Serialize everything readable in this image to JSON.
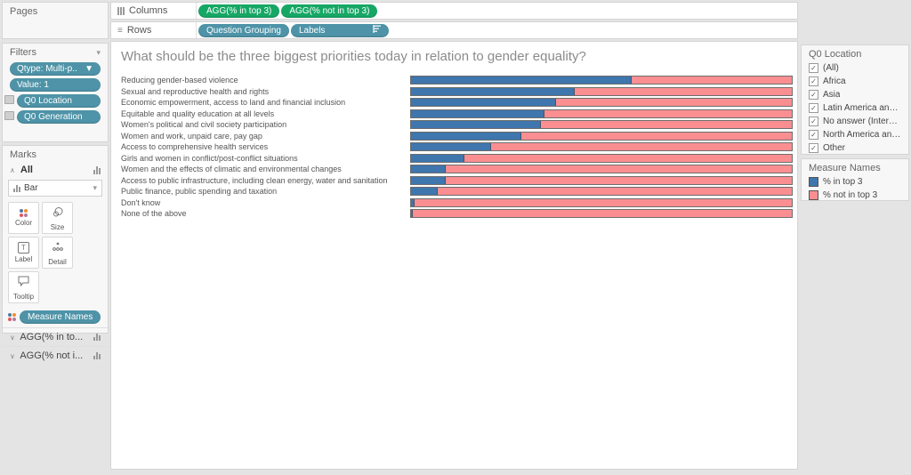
{
  "colors": {
    "measure_pill_green": "#16a765",
    "dimension_pill_blue": "#4e93a7",
    "bar_blue": "#3e76ad",
    "bar_pink": "#fa8e91",
    "color_icon_dots": [
      "#4e79a7",
      "#f28e2b",
      "#e15759",
      "#b07aa1"
    ]
  },
  "shelves": {
    "pages_label": "Pages",
    "columns_label": "Columns",
    "rows_label": "Rows",
    "columns_pills": [
      {
        "label": "AGG(% in top 3)"
      },
      {
        "label": "AGG(% not in top 3)"
      }
    ],
    "rows_pills": [
      {
        "label": "Question Grouping"
      },
      {
        "label": "Labels"
      }
    ]
  },
  "filters": {
    "title": "Filters",
    "pills": [
      {
        "label": "Qtype: Multi-p.."
      },
      {
        "label": "Value: 1"
      },
      {
        "label": "Q0 Location"
      },
      {
        "label": "Q0 Generation"
      }
    ]
  },
  "marks": {
    "title": "Marks",
    "card_label": "All",
    "mark_type": "Bar",
    "buttons": {
      "color": "Color",
      "size": "Size",
      "label": "Label",
      "detail": "Detail",
      "tooltip": "Tooltip"
    },
    "encoding_pill": "Measure Names",
    "measure_cards": [
      {
        "label": "AGG(% in to..."
      },
      {
        "label": "AGG(% not i..."
      }
    ]
  },
  "chart_data": {
    "type": "bar",
    "orientation": "horizontal-stacked",
    "title": "What should be the three biggest priorities today in relation to gender equality?",
    "categories": [
      "Reducing gender-based violence",
      "Sexual and reproductive health and rights",
      "Economic empowerment, access to land and financial inclusion",
      "Equitable and quality education at all levels",
      "Women's political and civil society participation",
      "Women and work, unpaid care, pay gap",
      "Access to comprehensive health services",
      "Girls and women in conflict/post-conflict situations",
      "Women and the effects of climatic and environmental changes",
      "Access to public infrastructure, including clean energy, water and sanitation",
      "Public finance, public spending and taxation",
      "Don't know",
      "None of the above"
    ],
    "series": [
      {
        "name": "% in top 3",
        "color": "#3e76ad",
        "values": [
          58,
          43,
          38,
          35,
          34,
          29,
          21,
          14,
          9,
          9,
          7,
          1,
          0.5
        ]
      },
      {
        "name": "% not in top 3",
        "color": "#fa8e91",
        "values": [
          42,
          57,
          62,
          65,
          66,
          71,
          79,
          86,
          91,
          91,
          93,
          99,
          99.5
        ]
      }
    ],
    "xlim": [
      0,
      100
    ],
    "grid": false,
    "legend_position": "right"
  },
  "location_filter": {
    "title": "Q0 Location",
    "options": [
      {
        "label": "(All)",
        "checked": true
      },
      {
        "label": "Africa",
        "checked": true
      },
      {
        "label": "Asia",
        "checked": true
      },
      {
        "label": "Latin America and Ca...",
        "checked": true
      },
      {
        "label": "No answer (Internatio...",
        "checked": true
      },
      {
        "label": "North America and Eu...",
        "checked": true
      },
      {
        "label": "Other",
        "checked": true
      }
    ]
  },
  "legend": {
    "title": "Measure Names",
    "items": [
      {
        "label": "% in top 3",
        "color": "#3e76ad"
      },
      {
        "label": "% not in top 3",
        "color": "#fa8e91"
      }
    ]
  }
}
